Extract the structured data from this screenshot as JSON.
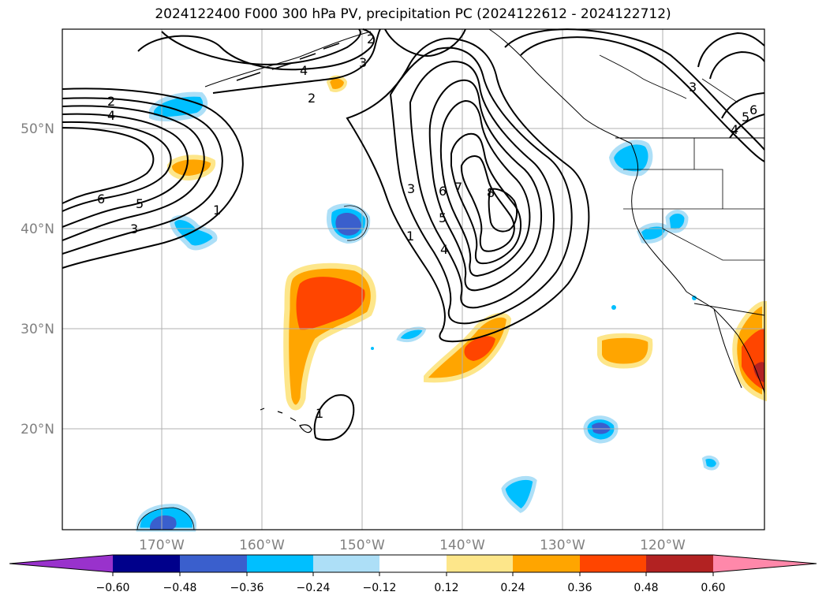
{
  "title": "2024122400 F000 300 hPa PV, precipitation PC (2024122612 - 2024122712)",
  "lat_labels": [
    "50°N",
    "40°N",
    "30°N",
    "20°N"
  ],
  "lon_labels": [
    "170°W",
    "160°W",
    "150°W",
    "140°W",
    "130°W",
    "120°W"
  ],
  "colorbar": {
    "tick_labels": [
      "−0.60",
      "−0.48",
      "−0.36",
      "−0.24",
      "−0.12",
      "0.12",
      "0.24",
      "0.36",
      "0.48",
      "0.60"
    ],
    "colors": [
      "#9932CC",
      "#00008B",
      "#3A5FCD",
      "#00BFFF",
      "#ADDFF7",
      "#FFFFFF",
      "#FDE68A",
      "#FFA500",
      "#FF4500",
      "#B22222",
      "#FF88AA"
    ]
  },
  "pv_contour_labels": [
    "2",
    "4",
    "6",
    "5",
    "3",
    "1",
    "4",
    "2",
    "3",
    "2",
    "3",
    "6",
    "5",
    "7",
    "8",
    "1",
    "4",
    "3",
    "5",
    "6",
    "4",
    "1"
  ],
  "colors": {
    "contour": "#000000",
    "grid": "#b0b0b0",
    "coast": "#000000"
  }
}
